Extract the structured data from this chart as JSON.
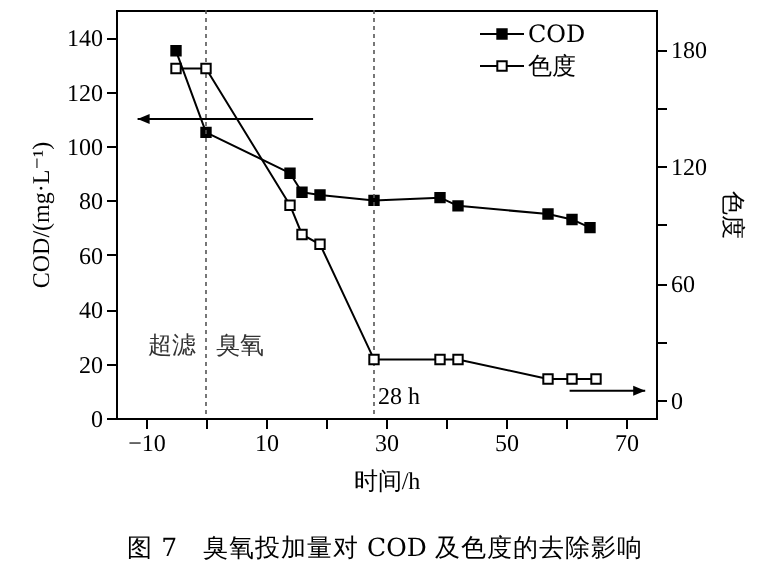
{
  "chart_data": {
    "type": "line",
    "xlabel": "时间/h",
    "ylabel": "COD/(mg·L⁻¹)",
    "y2label": "色度",
    "xlim": [
      -15,
      75
    ],
    "xticks": [
      -10,
      {
        "value": 0,
        "label": null
      },
      10,
      {
        "value": 20,
        "label": null
      },
      30,
      {
        "value": 40,
        "label": null
      },
      50,
      {
        "value": 60,
        "label": null
      },
      70
    ],
    "ylim": [
      0,
      150
    ],
    "yticks": [
      0,
      20,
      40,
      60,
      80,
      100,
      120,
      140
    ],
    "y2lim": [
      -9,
      200
    ],
    "y2ticks": [
      0,
      {
        "value": 30,
        "label": null
      },
      60,
      {
        "value": 90,
        "label": null
      },
      120,
      {
        "value": 150,
        "label": null
      },
      180
    ],
    "series": [
      {
        "name": "COD",
        "color": "#000000",
        "x": [
          -5,
          0,
          14,
          16,
          19,
          28,
          39,
          42,
          57,
          61,
          64
        ],
        "values": [
          135,
          105,
          90,
          83,
          82,
          80,
          81,
          78,
          75,
          73,
          70
        ]
      },
      {
        "name": "色度",
        "color": "#000000",
        "axis": "y2",
        "x": [
          -5,
          0,
          14,
          16,
          19,
          28,
          39,
          42,
          57,
          61,
          65
        ],
        "values": [
          170,
          170,
          100,
          85,
          80,
          21,
          21,
          21,
          11,
          11,
          11
        ]
      }
    ],
    "ref_lines": [
      {
        "axis": "x",
        "value": 0,
        "line_style": "dotted"
      },
      {
        "axis": "x",
        "value": 28,
        "label": "28 h",
        "line_style": "dotted"
      }
    ],
    "annotations": [
      "超滤",
      "臭氧",
      "图 7　臭氧投加量对 COD 及色度的去除影响"
    ],
    "marker": "square",
    "line_style": "solid",
    "legend": "top right",
    "grid": false
  }
}
